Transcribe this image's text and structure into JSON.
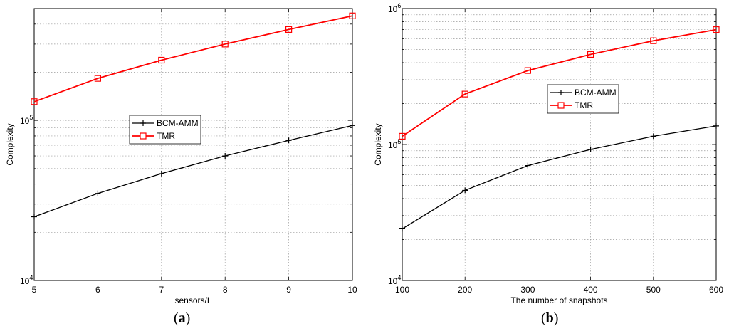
{
  "chart_data": [
    {
      "panel_label": "a",
      "type": "line",
      "xlabel": "sensors/L",
      "ylabel": "Complexity",
      "yscale": "log",
      "xlim": [
        5,
        10
      ],
      "ylim": [
        10000,
        500000
      ],
      "grid": true,
      "legend_position": "center-left",
      "xticks": [
        5,
        6,
        7,
        8,
        9,
        10
      ],
      "xtick_labels": [
        "5",
        "6",
        "7",
        "8",
        "9",
        "10"
      ],
      "yticks_major": [
        {
          "value": 10000,
          "base": "10",
          "exp": "4"
        },
        {
          "value": 100000,
          "base": "10",
          "exp": "5"
        }
      ],
      "x": [
        5,
        6,
        7,
        8,
        9,
        10
      ],
      "series": [
        {
          "name": "BCM-AMM",
          "color": "#000000",
          "marker": "plus",
          "values": [
            25000,
            35000,
            46500,
            60000,
            75000,
            93000
          ]
        },
        {
          "name": "TMR",
          "color": "#ff0000",
          "marker": "square",
          "values": [
            131000,
            183000,
            238000,
            300000,
            370000,
            450000
          ]
        }
      ]
    },
    {
      "panel_label": "b",
      "type": "line",
      "xlabel": "The number of snapshots",
      "ylabel": "Complexity",
      "yscale": "log",
      "xlim": [
        100,
        600
      ],
      "ylim": [
        10000,
        1000000
      ],
      "grid": true,
      "legend_position": "top-center",
      "xticks": [
        100,
        200,
        300,
        400,
        500,
        600
      ],
      "xtick_labels": [
        "100",
        "200",
        "300",
        "400",
        "500",
        "600"
      ],
      "yticks_major": [
        {
          "value": 10000,
          "base": "10",
          "exp": "4"
        },
        {
          "value": 100000,
          "base": "10",
          "exp": "5"
        },
        {
          "value": 1000000,
          "base": "10",
          "exp": "6"
        }
      ],
      "x": [
        100,
        200,
        300,
        400,
        500,
        600
      ],
      "series": [
        {
          "name": "BCM-AMM",
          "color": "#000000",
          "marker": "plus",
          "values": [
            24000,
            46000,
            70000,
            92000,
            115000,
            137000
          ]
        },
        {
          "name": "TMR",
          "color": "#ff0000",
          "marker": "square",
          "values": [
            115000,
            235000,
            350000,
            460000,
            580000,
            700000
          ]
        }
      ]
    }
  ]
}
